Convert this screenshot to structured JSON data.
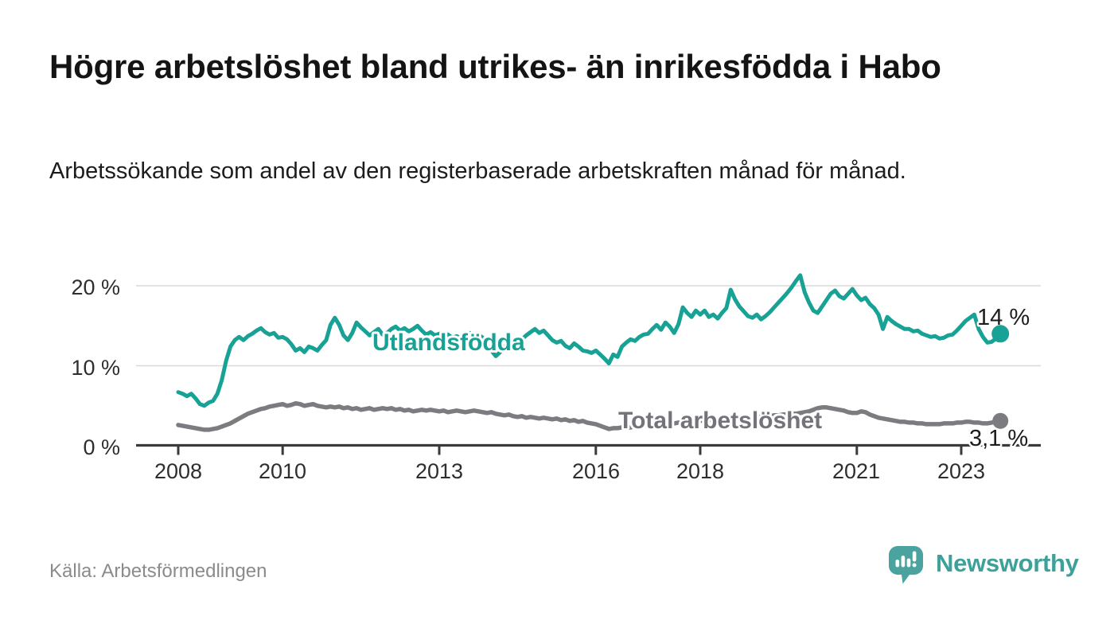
{
  "header": {
    "title": "Högre arbetslöshet bland utrikes- än inrikesfödda i Habo",
    "subtitle": "Arbetssökande som andel av den registerbaserade arbetskraften månad för månad."
  },
  "footer": {
    "source": "Källa: Arbetsförmedlingen",
    "brand": "Newsworthy"
  },
  "colors": {
    "accent_teal": "#18a295",
    "secondary_gray": "#7c7c80",
    "grid": "#d9d9d9",
    "axis": "#3a3a3a",
    "text": "#1d1d1d",
    "muted": "#8b8b8b",
    "brand_teal": "#3da19a",
    "brand_icon": "#4ba3a0"
  },
  "chart_data": {
    "type": "line",
    "title": "Högre arbetslöshet bland utrikes- än inrikesfödda i Habo",
    "subtitle": "Arbetssökande som andel av den registerbaserade arbetskraften månad för månad.",
    "source": "Källa: Arbetsförmedlingen",
    "xlabel": "",
    "ylabel": "",
    "unit": "%",
    "frequency": "monthly",
    "x_start": "2008-01",
    "x_end": "2023-10",
    "x_tick_labels": [
      "2008",
      "2010",
      "2013",
      "2016",
      "2018",
      "2021",
      "2023"
    ],
    "y_tick_labels": [
      "20 %",
      "10 %",
      "0 %"
    ],
    "y_gridlines": [
      20,
      10
    ],
    "ylim": [
      0,
      22
    ],
    "grid": "horizontal",
    "legend": "inline-labels",
    "series": [
      {
        "name": "Utlandsfödda",
        "color": "#18a295",
        "end_label": "14 %",
        "end_value": 14,
        "values": [
          6.7,
          6.5,
          6.2,
          6.5,
          5.9,
          5.2,
          5.0,
          5.4,
          5.6,
          6.5,
          8.2,
          10.6,
          12.4,
          13.2,
          13.6,
          13.2,
          13.7,
          14.0,
          14.4,
          14.7,
          14.2,
          13.9,
          14.1,
          13.5,
          13.6,
          13.3,
          12.7,
          11.9,
          12.2,
          11.7,
          12.4,
          12.2,
          11.9,
          12.6,
          13.2,
          15.1,
          16.0,
          15.1,
          13.8,
          13.2,
          14.1,
          15.4,
          14.8,
          14.3,
          13.8,
          14.2,
          14.6,
          13.9,
          14.1,
          14.6,
          14.9,
          14.4,
          14.7,
          14.3,
          14.6,
          15.0,
          14.4,
          13.9,
          14.2,
          13.8,
          14.0,
          13.6,
          13.9,
          13.5,
          13.7,
          13.4,
          13.8,
          14.1,
          13.7,
          13.9,
          13.5,
          12.6,
          11.9,
          11.2,
          11.7,
          12.4,
          12.8,
          12.3,
          12.9,
          13.3,
          13.8,
          14.2,
          14.6,
          14.1,
          14.4,
          13.8,
          13.2,
          12.9,
          13.1,
          12.5,
          12.2,
          12.8,
          12.4,
          11.9,
          11.8,
          11.6,
          11.9,
          11.4,
          10.9,
          10.3,
          11.4,
          11.1,
          12.4,
          12.9,
          13.3,
          13.1,
          13.6,
          13.9,
          14.0,
          14.6,
          15.1,
          14.5,
          15.4,
          14.9,
          14.1,
          15.2,
          17.3,
          16.6,
          16.1,
          16.9,
          16.4,
          16.9,
          16.1,
          16.4,
          15.9,
          16.6,
          17.2,
          19.5,
          18.3,
          17.4,
          16.8,
          16.2,
          16.0,
          16.4,
          15.8,
          16.2,
          16.7,
          17.3,
          17.9,
          18.5,
          19.1,
          19.8,
          20.6,
          21.3,
          19.2,
          17.9,
          16.9,
          16.6,
          17.4,
          18.2,
          19.0,
          19.4,
          18.7,
          18.4,
          19.0,
          19.6,
          18.8,
          18.2,
          18.5,
          17.7,
          17.2,
          16.4,
          14.6,
          16.1,
          15.6,
          15.2,
          14.9,
          14.6,
          14.6,
          14.3,
          14.4,
          14.0,
          13.8,
          13.6,
          13.7,
          13.4,
          13.5,
          13.8,
          13.9,
          14.4,
          15.0,
          15.6,
          16.0,
          16.4,
          14.6,
          13.6,
          12.9,
          13.0,
          13.4,
          14.0
        ]
      },
      {
        "name": "Total arbetslöshet",
        "color": "#7c7c80",
        "end_label": "3,1 %",
        "end_value": 3.1,
        "values": [
          2.6,
          2.5,
          2.4,
          2.3,
          2.2,
          2.1,
          2.0,
          2.0,
          2.1,
          2.2,
          2.4,
          2.6,
          2.8,
          3.1,
          3.4,
          3.7,
          4.0,
          4.2,
          4.4,
          4.6,
          4.7,
          4.9,
          5.0,
          5.1,
          5.2,
          5.0,
          5.1,
          5.3,
          5.2,
          5.0,
          5.1,
          5.2,
          5.0,
          4.9,
          4.8,
          4.9,
          4.8,
          4.9,
          4.7,
          4.8,
          4.6,
          4.7,
          4.5,
          4.6,
          4.7,
          4.5,
          4.6,
          4.7,
          4.6,
          4.7,
          4.5,
          4.6,
          4.4,
          4.5,
          4.3,
          4.4,
          4.5,
          4.4,
          4.5,
          4.4,
          4.3,
          4.4,
          4.2,
          4.3,
          4.4,
          4.3,
          4.2,
          4.3,
          4.4,
          4.3,
          4.2,
          4.1,
          4.2,
          4.0,
          3.9,
          3.8,
          3.9,
          3.7,
          3.6,
          3.7,
          3.5,
          3.6,
          3.5,
          3.4,
          3.5,
          3.4,
          3.3,
          3.4,
          3.2,
          3.3,
          3.1,
          3.2,
          3.0,
          3.1,
          2.9,
          2.8,
          2.7,
          2.5,
          2.3,
          2.1,
          2.2,
          2.2,
          2.3,
          2.2,
          2.3,
          2.4,
          2.4,
          2.5,
          2.5,
          2.6,
          2.6,
          2.7,
          2.7,
          2.8,
          2.8,
          2.9,
          2.9,
          3.0,
          3.0,
          3.1,
          3.1,
          3.2,
          3.2,
          3.3,
          3.3,
          3.2,
          3.2,
          3.3,
          3.3,
          3.4,
          3.4,
          3.5,
          3.5,
          3.6,
          3.6,
          3.7,
          3.7,
          3.8,
          3.8,
          3.9,
          3.9,
          4.0,
          4.0,
          4.1,
          4.2,
          4.3,
          4.5,
          4.7,
          4.8,
          4.8,
          4.7,
          4.6,
          4.5,
          4.4,
          4.2,
          4.1,
          4.1,
          4.3,
          4.2,
          3.9,
          3.7,
          3.5,
          3.4,
          3.3,
          3.2,
          3.1,
          3.0,
          3.0,
          2.9,
          2.9,
          2.8,
          2.8,
          2.7,
          2.7,
          2.7,
          2.7,
          2.8,
          2.8,
          2.8,
          2.9,
          2.9,
          3.0,
          3.0,
          2.9,
          2.9,
          2.8,
          2.8,
          2.9,
          3.0,
          3.1
        ]
      }
    ]
  }
}
